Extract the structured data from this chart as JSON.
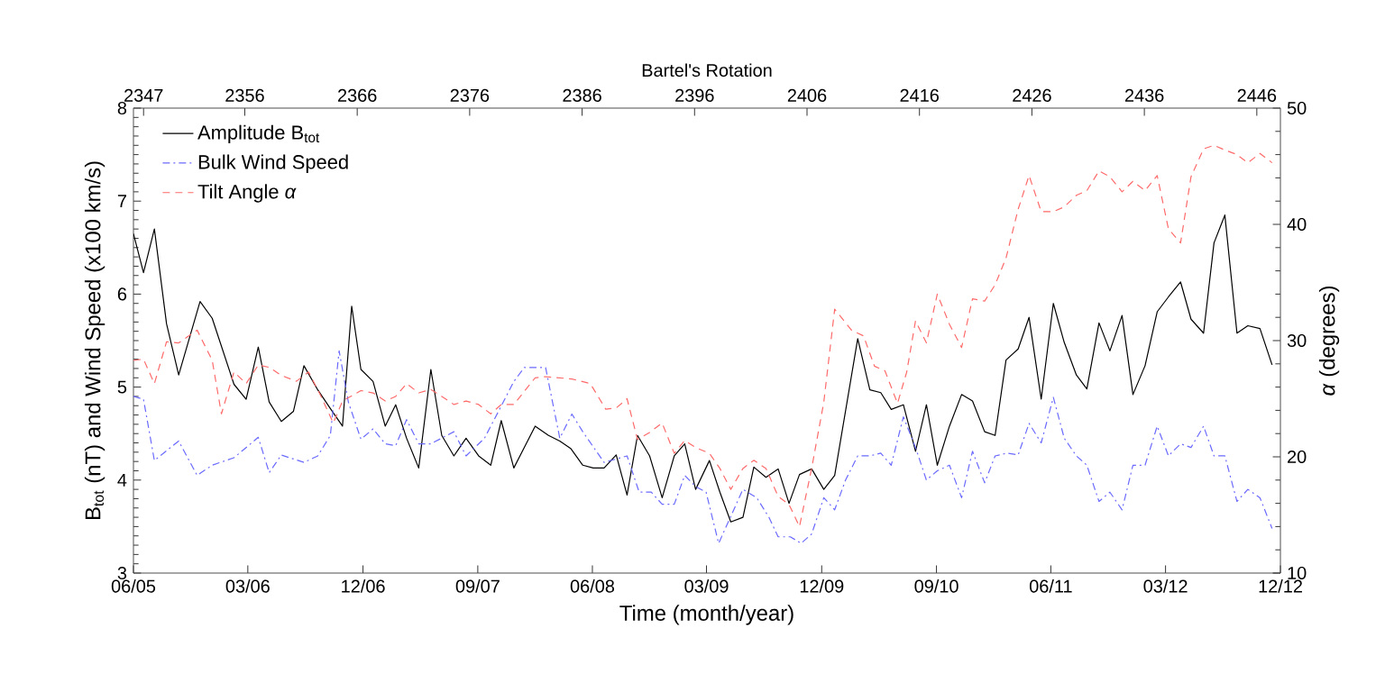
{
  "chart_data": {
    "type": "line",
    "xlabel": "Time (month/year)",
    "ylabel": "B$_{tot}$ (nT) and Wind Speed (x100 km/s)",
    "y2label": "*α* (degrees)",
    "x2label": "Bartel's Rotation",
    "xlim": [
      "2005-06-01",
      "2012-12-01"
    ],
    "xticks": [
      {
        "value": "2005-06-01",
        "label": "06/05"
      },
      {
        "value": "2006-03-01",
        "label": "03/06"
      },
      {
        "value": "2006-12-01",
        "label": "12/06"
      },
      {
        "value": "2007-09-01",
        "label": "09/07"
      },
      {
        "value": "2008-06-01",
        "label": "06/08"
      },
      {
        "value": "2009-03-01",
        "label": "03/09"
      },
      {
        "value": "2009-12-01",
        "label": "12/09"
      },
      {
        "value": "2010-09-01",
        "label": "09/10"
      },
      {
        "value": "2011-06-01",
        "label": "06/11"
      },
      {
        "value": "2012-03-01",
        "label": "03/12"
      },
      {
        "value": "2012-12-01",
        "label": "12/12"
      }
    ],
    "ylim": [
      3,
      8
    ],
    "yticks": [
      3,
      4,
      5,
      6,
      7,
      8
    ],
    "y2lim": [
      10,
      50
    ],
    "y2ticks": [
      10,
      20,
      30,
      40,
      50
    ],
    "x2lim": [
      2346.1,
      2448.1
    ],
    "x2ticks": [
      2347,
      2356,
      2366,
      2376,
      2386,
      2396,
      2406,
      2416,
      2426,
      2436,
      2446
    ],
    "legend": "top left",
    "grid": false,
    "marker": "none",
    "series": [
      {
        "name": "Amplitude B$_{tot}$",
        "color": "#000000",
        "line_style": "solid",
        "x": [
          "2005-06-01",
          "2005-06-25",
          "2005-07-21",
          "2005-08-19",
          "2005-09-17",
          "2005-11-07",
          "2005-12-06",
          "2006-01-27",
          "2006-02-25",
          "2006-03-26",
          "2006-04-21",
          "2006-05-20",
          "2006-06-18",
          "2006-07-13",
          "2006-08-15",
          "2006-09-14",
          "2006-10-13",
          "2006-11-04",
          "2006-11-26",
          "2006-12-25",
          "2007-01-23",
          "2007-02-17",
          "2007-03-15",
          "2007-04-13",
          "2007-05-12",
          "2007-06-07",
          "2007-07-06",
          "2007-08-04",
          "2007-09-03",
          "2007-10-02",
          "2007-10-27",
          "2007-11-26",
          "2008-01-16",
          "2008-02-17",
          "2008-03-15",
          "2008-04-10",
          "2008-05-09",
          "2008-06-03",
          "2008-06-29",
          "2008-07-28",
          "2008-08-23",
          "2008-09-17",
          "2008-10-16",
          "2008-11-15",
          "2008-12-14",
          "2009-01-08",
          "2009-02-03",
          "2009-03-08",
          "2009-04-02",
          "2009-04-28",
          "2009-05-27",
          "2009-06-22",
          "2009-07-21",
          "2009-08-19",
          "2009-09-14",
          "2009-10-09",
          "2009-11-07",
          "2009-12-06",
          "2010-01-01",
          "2010-02-25",
          "2010-03-26",
          "2010-04-21",
          "2010-05-16",
          "2010-06-14",
          "2010-07-13",
          "2010-08-08",
          "2010-09-03",
          "2010-10-02",
          "2010-10-31",
          "2010-11-26",
          "2010-12-25",
          "2011-01-19",
          "2011-02-14",
          "2011-03-15",
          "2011-04-10",
          "2011-05-09",
          "2011-06-07",
          "2011-07-03",
          "2011-08-01",
          "2011-08-26",
          "2011-09-24",
          "2011-10-20",
          "2011-11-18",
          "2011-12-14",
          "2012-01-12",
          "2012-02-10",
          "2012-03-08",
          "2012-04-06",
          "2012-05-01",
          "2012-05-31",
          "2012-06-25",
          "2012-07-21",
          "2012-08-19",
          "2012-09-14",
          "2012-10-13",
          "2012-11-11"
        ],
        "values": [
          6.65,
          6.23,
          6.7,
          5.68,
          5.13,
          5.92,
          5.74,
          5.03,
          4.87,
          5.43,
          4.84,
          4.63,
          4.74,
          5.23,
          4.97,
          4.77,
          4.58,
          5.87,
          5.19,
          5.06,
          4.58,
          4.81,
          4.45,
          4.13,
          5.19,
          4.48,
          4.26,
          4.45,
          4.26,
          4.16,
          4.64,
          4.13,
          4.58,
          4.48,
          4.42,
          4.34,
          4.16,
          4.13,
          4.13,
          4.27,
          3.84,
          4.48,
          4.26,
          3.81,
          4.26,
          4.39,
          3.9,
          4.21,
          3.87,
          3.55,
          3.6,
          4.14,
          4.03,
          4.12,
          3.75,
          4.06,
          4.12,
          3.9,
          4.05,
          5.52,
          4.97,
          4.94,
          4.76,
          4.81,
          4.31,
          4.81,
          4.16,
          4.58,
          4.92,
          4.85,
          4.52,
          4.48,
          5.29,
          5.41,
          5.75,
          4.87,
          5.9,
          5.48,
          5.13,
          4.98,
          5.69,
          5.39,
          5.77,
          4.92,
          5.23,
          5.81,
          5.97,
          6.13,
          5.73,
          5.58,
          6.55,
          6.85,
          5.58,
          5.66,
          5.63,
          5.24
        ]
      },
      {
        "name": "Bulk Wind Speed",
        "color": "#6a6aff",
        "line_style": "dashdot",
        "x": [
          "2005-06-01",
          "2005-06-25",
          "2005-07-21",
          "2005-09-17",
          "2005-10-31",
          "2005-12-06",
          "2006-01-27",
          "2006-03-26",
          "2006-04-21",
          "2006-05-20",
          "2006-07-13",
          "2006-08-15",
          "2006-09-14",
          "2006-10-05",
          "2006-10-27",
          "2006-11-26",
          "2006-12-25",
          "2007-01-23",
          "2007-02-17",
          "2007-03-15",
          "2007-04-13",
          "2007-05-12",
          "2007-07-06",
          "2007-08-04",
          "2007-09-17",
          "2007-10-24",
          "2007-11-26",
          "2007-12-21",
          "2008-02-10",
          "2008-03-15",
          "2008-04-13",
          "2008-05-09",
          "2008-06-29",
          "2008-08-23",
          "2008-09-21",
          "2008-10-20",
          "2008-11-15",
          "2008-12-14",
          "2009-01-08",
          "2009-02-03",
          "2009-02-28",
          "2009-03-30",
          "2009-04-28",
          "2009-05-27",
          "2009-06-29",
          "2009-07-28",
          "2009-08-19",
          "2009-09-17",
          "2009-10-13",
          "2009-11-07",
          "2009-12-06",
          "2010-01-01",
          "2010-01-27",
          "2010-02-25",
          "2010-03-26",
          "2010-04-21",
          "2010-05-16",
          "2010-06-14",
          "2010-07-13",
          "2010-08-08",
          "2010-09-03",
          "2010-10-02",
          "2010-10-31",
          "2010-11-26",
          "2010-12-25",
          "2011-01-19",
          "2011-02-17",
          "2011-03-15",
          "2011-04-10",
          "2011-05-09",
          "2011-06-07",
          "2011-07-03",
          "2011-08-01",
          "2011-08-26",
          "2011-09-24",
          "2011-10-20",
          "2011-11-18",
          "2011-12-14",
          "2012-01-12",
          "2012-02-10",
          "2012-03-08",
          "2012-04-06",
          "2012-05-01",
          "2012-05-31",
          "2012-06-25",
          "2012-07-21",
          "2012-08-19",
          "2012-09-14",
          "2012-10-13",
          "2012-11-11"
        ],
        "values": [
          4.9,
          4.87,
          4.21,
          4.42,
          4.05,
          4.16,
          4.24,
          4.46,
          4.08,
          4.27,
          4.19,
          4.26,
          4.48,
          5.39,
          4.84,
          4.44,
          4.55,
          4.39,
          4.37,
          4.65,
          4.39,
          4.39,
          4.52,
          4.26,
          4.45,
          4.77,
          5.06,
          5.21,
          5.21,
          4.45,
          4.71,
          4.52,
          4.19,
          4.26,
          3.87,
          3.87,
          3.74,
          3.74,
          4.05,
          3.93,
          3.87,
          3.32,
          3.61,
          3.9,
          3.81,
          3.6,
          3.39,
          3.39,
          3.32,
          3.42,
          3.81,
          3.68,
          4.0,
          4.26,
          4.26,
          4.29,
          4.16,
          4.68,
          4.35,
          4.0,
          4.1,
          4.16,
          3.81,
          4.31,
          3.97,
          4.26,
          4.29,
          4.27,
          4.61,
          4.4,
          4.89,
          4.45,
          4.26,
          4.16,
          3.77,
          3.87,
          3.68,
          4.16,
          4.16,
          4.58,
          4.26,
          4.39,
          4.35,
          4.58,
          4.26,
          4.26,
          3.77,
          3.9,
          3.81,
          3.48
        ]
      },
      {
        "name": "Tilt Angle *α*",
        "color": "#ff6a6a",
        "line_style": "dashed",
        "axis": "y2",
        "x": [
          "2005-06-01",
          "2005-06-25",
          "2005-07-21",
          "2005-08-19",
          "2005-09-17",
          "2005-10-31",
          "2005-12-06",
          "2005-12-28",
          "2006-01-27",
          "2006-02-25",
          "2006-03-26",
          "2006-04-21",
          "2006-05-20",
          "2006-06-25",
          "2006-07-24",
          "2006-08-23",
          "2006-09-21",
          "2006-10-13",
          "2006-11-26",
          "2006-12-25",
          "2007-01-23",
          "2007-02-17",
          "2007-03-15",
          "2007-04-13",
          "2007-05-12",
          "2007-06-07",
          "2007-07-06",
          "2007-08-04",
          "2007-09-03",
          "2007-10-02",
          "2007-10-27",
          "2007-11-26",
          "2008-01-16",
          "2008-02-10",
          "2008-04-13",
          "2008-05-27",
          "2008-07-03",
          "2008-07-28",
          "2008-08-23",
          "2008-09-17",
          "2008-10-16",
          "2008-11-15",
          "2008-12-14",
          "2009-01-08",
          "2009-02-03",
          "2009-03-08",
          "2009-04-02",
          "2009-04-28",
          "2009-05-27",
          "2009-06-22",
          "2009-07-21",
          "2009-08-19",
          "2009-09-14",
          "2009-10-09",
          "2009-11-07",
          "2009-12-06",
          "2010-01-01",
          "2010-02-10",
          "2010-03-11",
          "2010-04-06",
          "2010-05-01",
          "2010-05-31",
          "2010-06-22",
          "2010-07-13",
          "2010-08-08",
          "2010-09-03",
          "2010-10-02",
          "2010-10-31",
          "2010-11-26",
          "2010-12-25",
          "2011-01-19",
          "2011-02-14",
          "2011-03-15",
          "2011-04-10",
          "2011-05-09",
          "2011-06-07",
          "2011-07-03",
          "2011-08-01",
          "2011-08-26",
          "2011-09-24",
          "2011-10-20",
          "2011-11-18",
          "2011-12-14",
          "2012-01-12",
          "2012-02-10",
          "2012-03-08",
          "2012-04-06",
          "2012-05-01",
          "2012-05-31",
          "2012-06-25",
          "2012-07-21",
          "2012-08-19",
          "2012-09-14",
          "2012-10-13",
          "2012-11-11"
        ],
        "values": [
          28.3,
          28.4,
          26.3,
          29.9,
          29.8,
          30.9,
          28.3,
          23.7,
          27.3,
          26.3,
          27.9,
          27.7,
          27.0,
          26.5,
          27.3,
          25.2,
          22.9,
          24.8,
          25.7,
          25.5,
          24.8,
          25.2,
          26.3,
          25.5,
          25.8,
          25.2,
          24.5,
          24.8,
          24.5,
          23.7,
          24.5,
          24.5,
          26.8,
          26.9,
          26.7,
          26.3,
          24.1,
          24.2,
          25.0,
          21.5,
          22.1,
          22.9,
          20.3,
          21.4,
          20.8,
          20.3,
          19.0,
          17.2,
          19.0,
          19.7,
          19.0,
          16.6,
          15.9,
          14.0,
          19.0,
          24.7,
          32.7,
          30.9,
          30.4,
          27.8,
          27.4,
          24.6,
          27.3,
          31.7,
          29.8,
          34.0,
          31.4,
          29.4,
          33.6,
          33.4,
          34.8,
          37.1,
          41.3,
          44.2,
          41.1,
          41.1,
          41.5,
          42.5,
          42.9,
          44.6,
          44.1,
          42.8,
          43.7,
          42.9,
          44.2,
          39.6,
          38.4,
          44.1,
          46.5,
          46.8,
          46.4,
          46.0,
          45.3,
          46.1,
          45.3
        ]
      }
    ]
  }
}
